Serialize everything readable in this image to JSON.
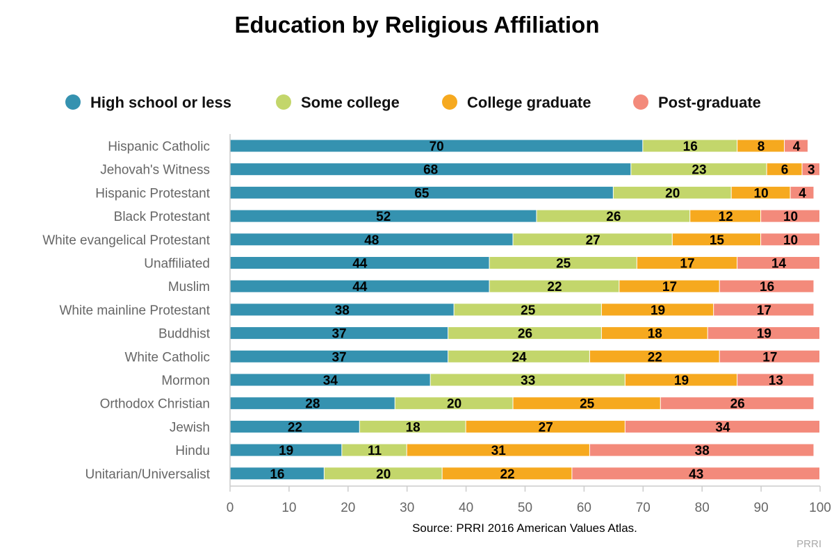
{
  "chart_data": {
    "type": "bar",
    "orientation": "horizontal",
    "stacked": true,
    "title": "Education by Religious Affiliation",
    "source": "Source: PRRI 2016 American Values Atlas.",
    "watermark": "PRRI",
    "xlim": [
      0,
      100
    ],
    "xticks": [
      0,
      10,
      20,
      30,
      40,
      50,
      60,
      70,
      80,
      90,
      100
    ],
    "legend_position": "top",
    "categories": [
      "Hispanic Catholic",
      "Jehovah's Witness",
      "Hispanic Protestant",
      "Black Protestant",
      "White evangelical Protestant",
      "Unaffiliated",
      "Muslim",
      "White mainline Protestant",
      "Buddhist",
      "White Catholic",
      "Mormon",
      "Orthodox Christian",
      "Jewish",
      "Hindu",
      "Unitarian/Universalist"
    ],
    "series": [
      {
        "name": "High school or less",
        "color": "#3592b0",
        "values": [
          70,
          68,
          65,
          52,
          48,
          44,
          44,
          38,
          37,
          37,
          34,
          28,
          22,
          19,
          16
        ]
      },
      {
        "name": "Some college",
        "color": "#c3d66b",
        "values": [
          16,
          23,
          20,
          26,
          27,
          25,
          22,
          25,
          26,
          24,
          33,
          20,
          18,
          11,
          20
        ]
      },
      {
        "name": "College graduate",
        "color": "#f6a91f",
        "values": [
          8,
          6,
          10,
          12,
          15,
          17,
          17,
          19,
          18,
          22,
          19,
          25,
          27,
          31,
          22
        ]
      },
      {
        "name": "Post-graduate",
        "color": "#f38a7b",
        "values": [
          4,
          3,
          4,
          10,
          10,
          14,
          16,
          17,
          19,
          17,
          13,
          26,
          34,
          38,
          43
        ]
      }
    ]
  }
}
